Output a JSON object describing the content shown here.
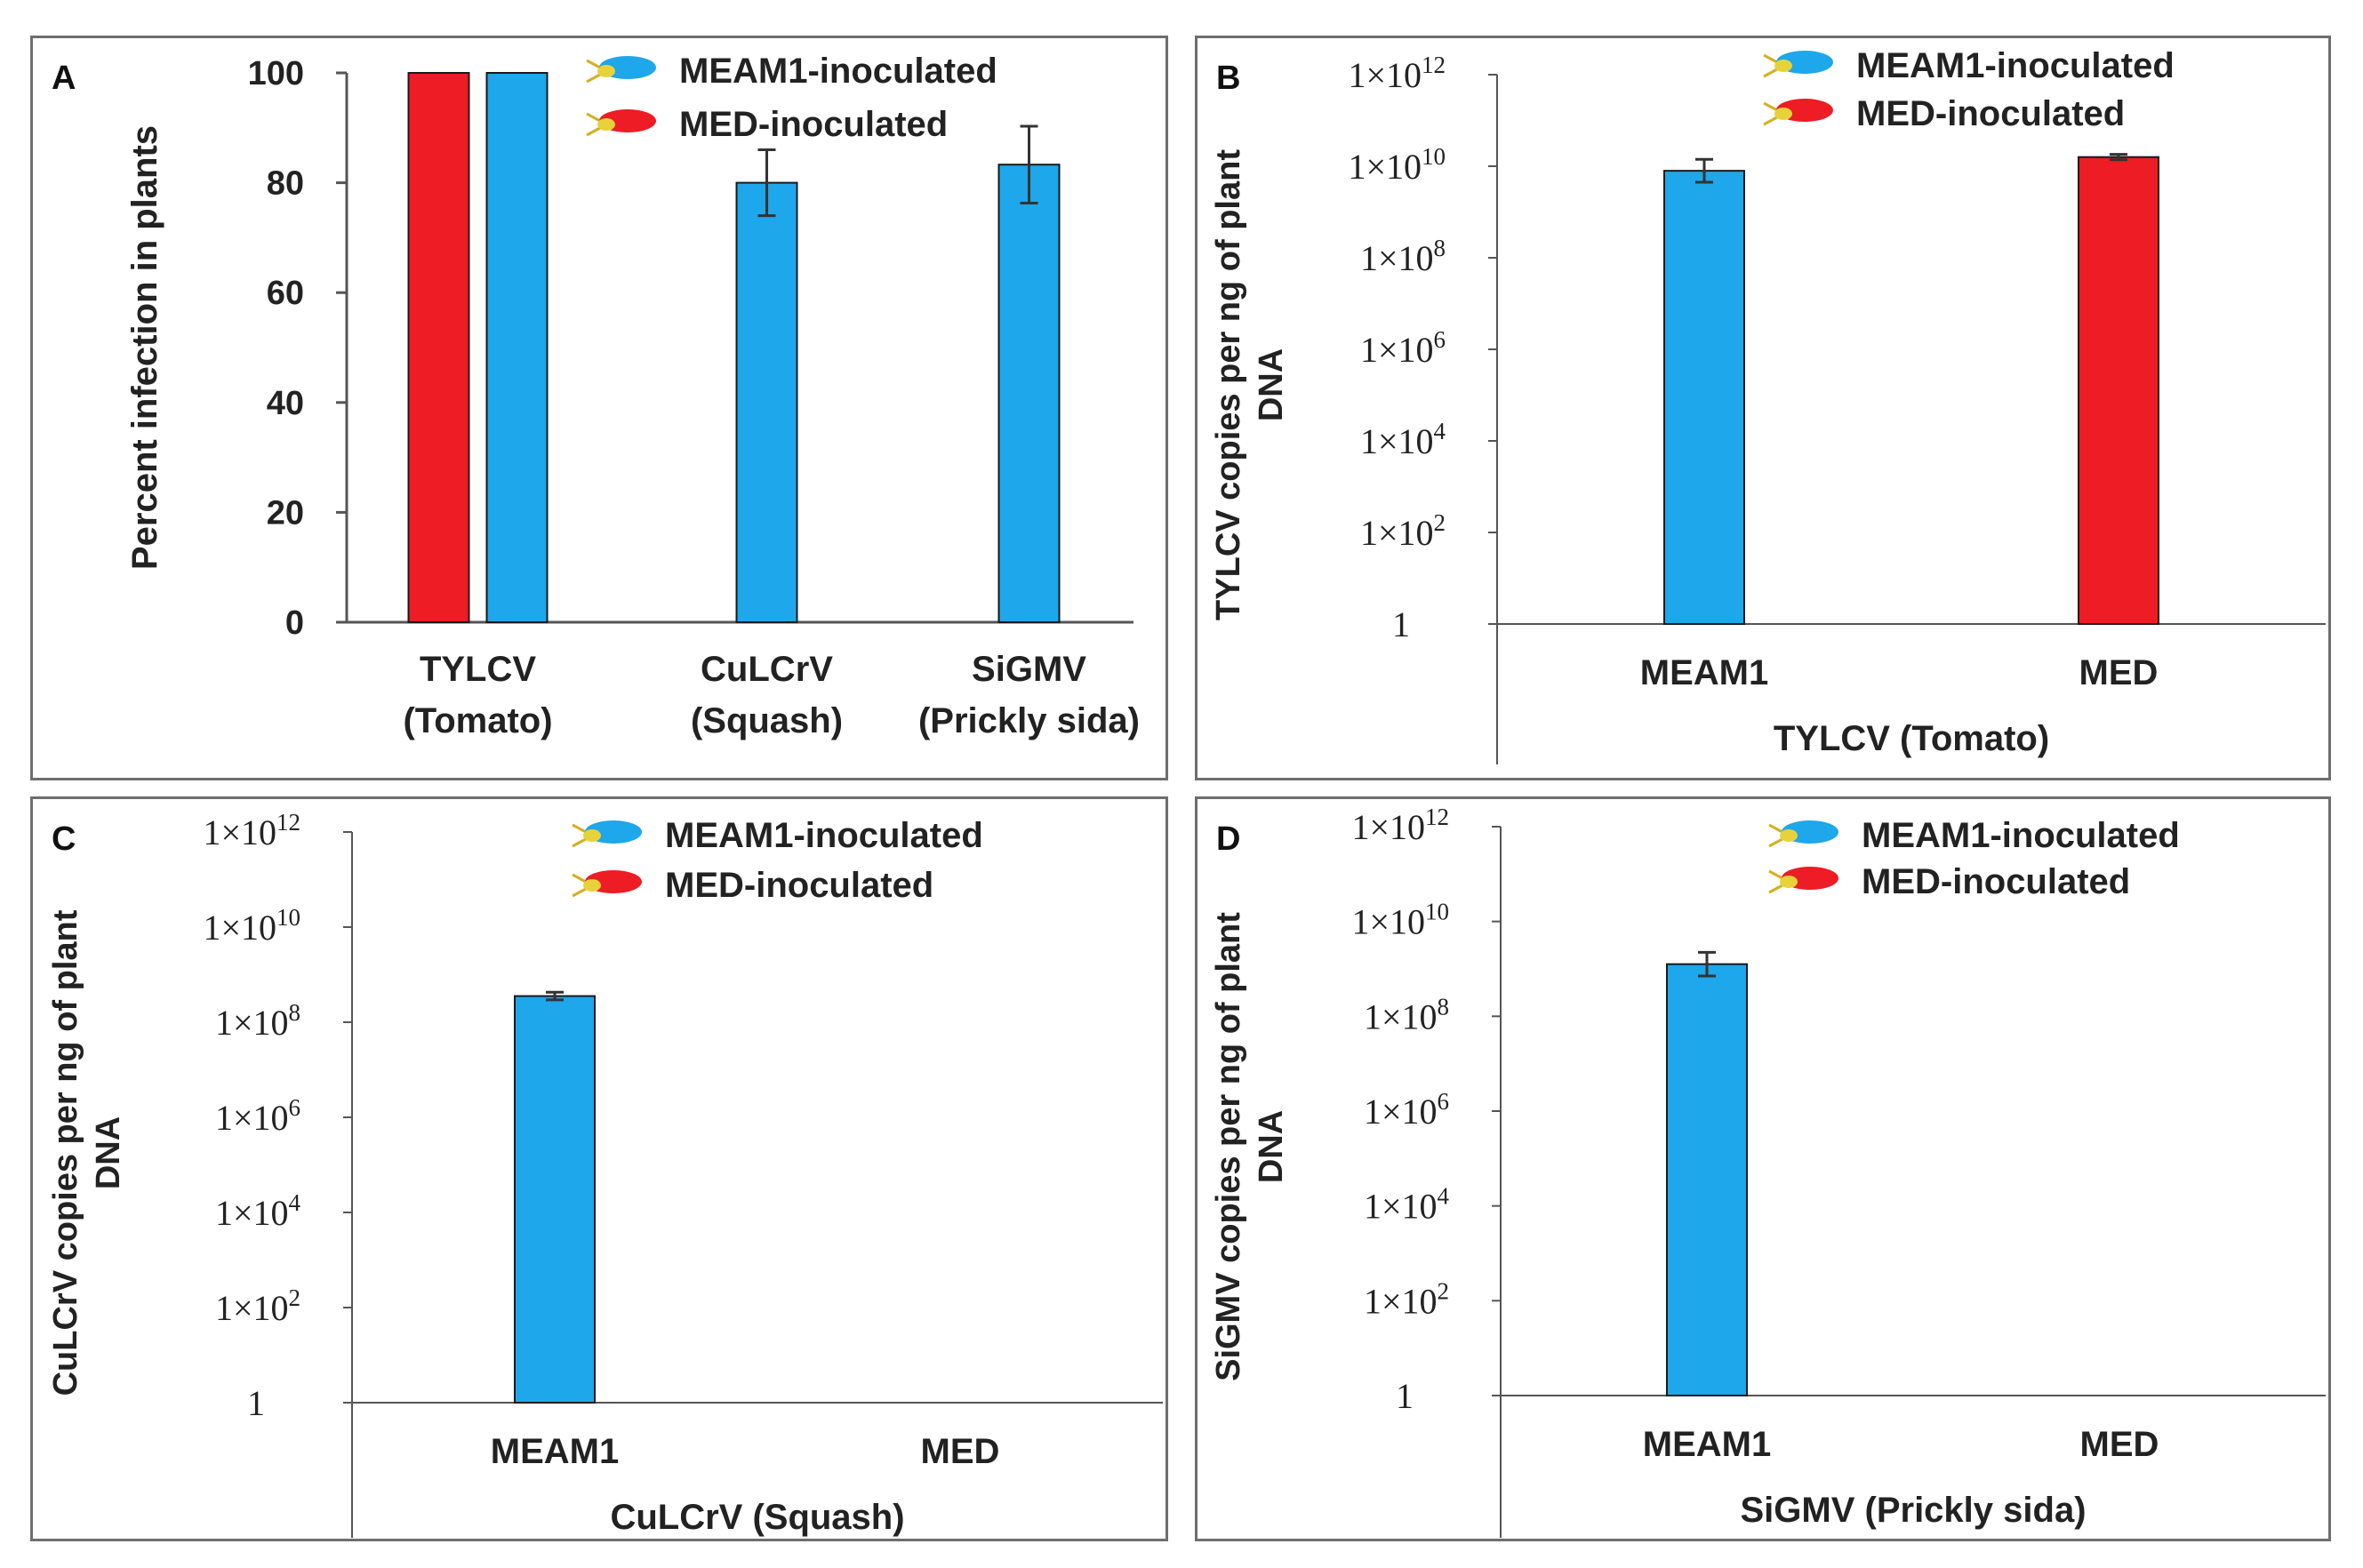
{
  "colors": {
    "meam1": "#1ea7ea",
    "med": "#ee1c24",
    "axis": "#555555",
    "bar_stroke": "#1a1a1a"
  },
  "legend": {
    "meam1": "MEAM1-inoculated",
    "med": "MED-inoculated"
  },
  "chart_data": [
    {
      "id": "A",
      "type": "bar",
      "ylabel": "Percent infection in plants",
      "ylim": [
        0,
        100
      ],
      "yticks": [
        "0",
        "20",
        "40",
        "60",
        "80",
        "100"
      ],
      "categories": [
        {
          "line1": "TYLCV",
          "line2": "(Tomato)"
        },
        {
          "line1": "CuLCrV",
          "line2": "(Squash)"
        },
        {
          "line1": "SiGMV",
          "line2": "(Prickly sida)"
        }
      ],
      "series": [
        {
          "name": "MED-inoculated",
          "values": [
            100,
            null,
            null
          ],
          "errors": [
            0,
            null,
            null
          ]
        },
        {
          "name": "MEAM1-inoculated",
          "values": [
            100,
            80,
            83.3
          ],
          "errors": [
            0,
            6,
            7
          ]
        }
      ]
    },
    {
      "id": "B",
      "type": "bar",
      "scale": "log",
      "ylabel_line1": "TYLCV copies per ng of plant",
      "ylabel_line2": "DNA",
      "xlabel": "TYLCV (Tomato)",
      "ylim_log10": [
        0,
        12
      ],
      "yticks": [
        {
          "base": "1",
          "exp": ""
        },
        {
          "base": "1×10",
          "exp": "2"
        },
        {
          "base": "1×10",
          "exp": "4"
        },
        {
          "base": "1×10",
          "exp": "6"
        },
        {
          "base": "1×10",
          "exp": "8"
        },
        {
          "base": "1×10",
          "exp": "10"
        },
        {
          "base": "1×10",
          "exp": "12"
        }
      ],
      "categories": [
        "MEAM1",
        "MED"
      ],
      "values_log10": [
        9.9,
        10.2
      ],
      "err_log10": [
        0.25,
        0.06
      ],
      "series_colors": [
        "meam1",
        "med"
      ]
    },
    {
      "id": "C",
      "type": "bar",
      "scale": "log",
      "ylabel_line1": "CuLCrV copies per ng of plant",
      "ylabel_line2": "DNA",
      "xlabel": "CuLCrV (Squash)",
      "ylim_log10": [
        0,
        12
      ],
      "yticks": [
        {
          "base": "1",
          "exp": ""
        },
        {
          "base": "1×10",
          "exp": "2"
        },
        {
          "base": "1×10",
          "exp": "4"
        },
        {
          "base": "1×10",
          "exp": "6"
        },
        {
          "base": "1×10",
          "exp": "8"
        },
        {
          "base": "1×10",
          "exp": "10"
        },
        {
          "base": "1×10",
          "exp": "12"
        }
      ],
      "categories": [
        "MEAM1",
        "MED"
      ],
      "values_log10": [
        8.55,
        null
      ],
      "err_log10": [
        0.08,
        null
      ],
      "series_colors": [
        "meam1",
        "med"
      ]
    },
    {
      "id": "D",
      "type": "bar",
      "scale": "log",
      "ylabel_line1": "SiGMV copies per ng of plant",
      "ylabel_line2": "DNA",
      "xlabel": "SiGMV (Prickly sida)",
      "ylim_log10": [
        0,
        12
      ],
      "yticks": [
        {
          "base": "1",
          "exp": ""
        },
        {
          "base": "1×10",
          "exp": "2"
        },
        {
          "base": "1×10",
          "exp": "4"
        },
        {
          "base": "1×10",
          "exp": "6"
        },
        {
          "base": "1×10",
          "exp": "8"
        },
        {
          "base": "1×10",
          "exp": "10"
        },
        {
          "base": "1×10",
          "exp": "12"
        }
      ],
      "categories": [
        "MEAM1",
        "MED"
      ],
      "values_log10": [
        9.1,
        null
      ],
      "err_log10": [
        0.25,
        null
      ],
      "series_colors": [
        "meam1",
        "med"
      ]
    }
  ]
}
